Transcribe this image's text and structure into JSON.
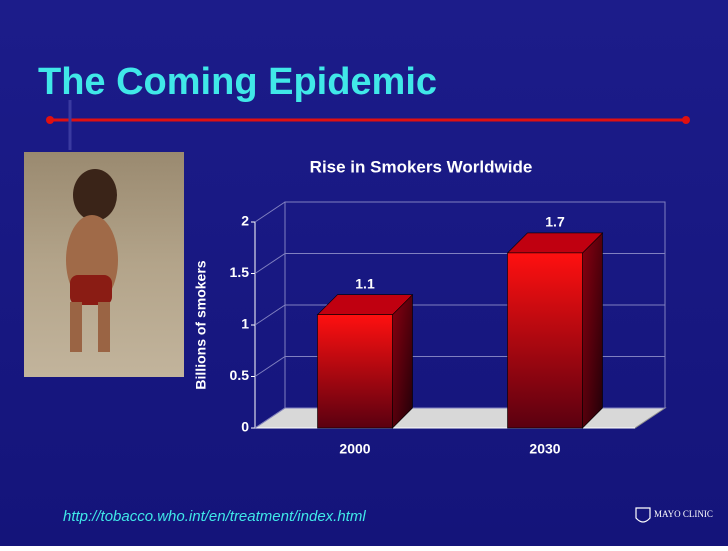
{
  "slide_title": "The Coming Epidemic",
  "source": "http://tobacco.who.int/en/treatment/index.html",
  "logo": "MAYO CLINIC",
  "chart_data": {
    "type": "bar3d",
    "title": "Rise in Smokers Worldwide",
    "ylabel": "Billions of smokers",
    "categories": [
      "2000",
      "2030"
    ],
    "values": [
      1.1,
      1.7
    ],
    "color": "#ff1010",
    "ylim": [
      0,
      2
    ],
    "yticks": [
      0,
      0.5,
      1,
      1.5,
      2
    ],
    "grid": true
  }
}
